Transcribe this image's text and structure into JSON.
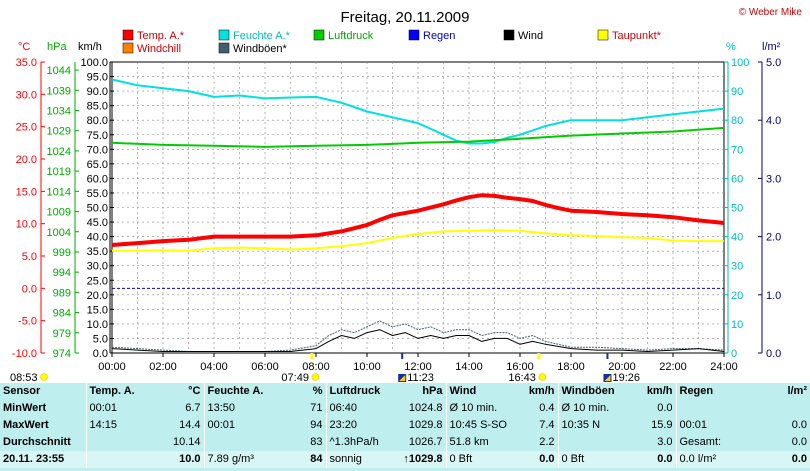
{
  "title": "Freitag, 20.11.2009",
  "credit": "© Weber Mike",
  "colors": {
    "temp": "#ff0000",
    "humidity": "#00e0e0",
    "pressure": "#00cc00",
    "rain": "#0000ff",
    "wind": "#000000",
    "dewpoint": "#ffff00",
    "windchill": "#ff8000",
    "gust": "#406070"
  },
  "chart_data": {
    "type": "line",
    "title": "Freitag, 20.11.2009",
    "axes": {
      "temp": {
        "unit": "°C",
        "min": -10,
        "max": 35,
        "ticks": [
          "35.0",
          "30.0",
          "25.0",
          "20.0",
          "15.0",
          "10.0",
          "5.0",
          "0.0",
          "-5.0",
          "-10.0"
        ]
      },
      "pressure": {
        "unit": "hPa",
        "min": 974,
        "max": 1046,
        "ticks": [
          "1044",
          "1039",
          "1034",
          "1029",
          "1024",
          "1019",
          "1014",
          "1009",
          "1004",
          "999",
          "994",
          "989",
          "984",
          "979",
          "974"
        ]
      },
      "wind": {
        "unit": "km/h",
        "min": 0,
        "max": 100,
        "ticks": [
          "100.0",
          "95.0",
          "90.0",
          "85.0",
          "80.0",
          "75.0",
          "70.0",
          "65.0",
          "60.0",
          "55.0",
          "50.0",
          "45.0",
          "40.0",
          "35.0",
          "30.0",
          "25.0",
          "20.0",
          "15.0",
          "10.0",
          "5.0",
          "0.0"
        ]
      },
      "humidity": {
        "unit": "%",
        "min": 0,
        "max": 100,
        "ticks": [
          "100",
          "90",
          "80",
          "70",
          "60",
          "50",
          "40",
          "30",
          "20",
          "10",
          "0"
        ]
      },
      "rain": {
        "unit": "l/m²",
        "min": 0,
        "max": 5,
        "ticks": [
          "5.0",
          "4.0",
          "3.0",
          "2.0",
          "1.0",
          "0.0"
        ]
      }
    },
    "x_ticks": [
      "00:00",
      "02:00",
      "04:00",
      "06:00",
      "08:00",
      "10:00",
      "12:00",
      "14:00",
      "16:00",
      "18:00",
      "20:00",
      "22:00",
      "24:00"
    ],
    "x_hours": [
      0,
      2,
      4,
      6,
      8,
      10,
      12,
      14,
      16,
      18,
      20,
      22,
      24
    ],
    "zero_line_temp": 0,
    "sun": {
      "rise_time": "07:49",
      "set_time": "16:43",
      "rise_hour": 7.82,
      "set_hour": 16.72
    },
    "moon": {
      "prev_set": "08:53",
      "rise_time": "11:23",
      "set_time": "19:26",
      "rise_hour": 11.38,
      "set_hour": 19.43
    },
    "legend": [
      {
        "key": "temp",
        "label": "Temp. A.*"
      },
      {
        "key": "humidity",
        "label": "Feuchte A.*"
      },
      {
        "key": "pressure",
        "label": "Luftdruck"
      },
      {
        "key": "rain",
        "label": "Regen"
      },
      {
        "key": "wind",
        "label": "Wind"
      },
      {
        "key": "dewpoint",
        "label": "Taupunkt*"
      },
      {
        "key": "windchill",
        "label": "Windchill"
      },
      {
        "key": "gust",
        "label": "Windböen*"
      }
    ],
    "series": [
      {
        "key": "humidity",
        "axis": "humidity",
        "width": 2,
        "x": [
          0,
          1,
          2,
          3,
          4,
          5,
          6,
          7,
          8,
          9,
          10,
          11,
          12,
          12.5,
          13,
          13.5,
          14,
          14.5,
          15,
          15.5,
          16,
          17,
          18,
          19,
          20,
          21,
          22,
          23,
          24
        ],
        "y": [
          94,
          92,
          91,
          90,
          88,
          88.5,
          87.5,
          87.8,
          88,
          86,
          83,
          81,
          79,
          77,
          75,
          73,
          72,
          72,
          72.5,
          74,
          75,
          78,
          80,
          80,
          80,
          81,
          82,
          83,
          84
        ]
      },
      {
        "key": "pressure",
        "axis": "pressure",
        "width": 2,
        "x": [
          0,
          2,
          4,
          6,
          8,
          10,
          12,
          14,
          16,
          18,
          20,
          22,
          24
        ],
        "y": [
          1026,
          1025.5,
          1025.3,
          1025.0,
          1025.3,
          1025.5,
          1026.0,
          1026.3,
          1027.0,
          1027.8,
          1028.3,
          1028.8,
          1029.7
        ]
      },
      {
        "key": "dewpoint",
        "axis": "temp",
        "width": 2,
        "x": [
          0,
          1,
          2,
          3,
          4,
          5,
          6,
          7,
          8,
          9,
          10,
          11,
          12,
          13,
          14,
          15,
          16,
          17,
          18,
          19,
          20,
          21,
          22,
          23,
          24
        ],
        "y": [
          5.8,
          5.8,
          5.9,
          5.8,
          6.2,
          6.3,
          6.2,
          6.0,
          6.2,
          6.5,
          7.0,
          7.8,
          8.4,
          8.8,
          8.9,
          9.0,
          8.9,
          8.5,
          8.2,
          8.1,
          7.9,
          7.8,
          7.4,
          7.3,
          7.3
        ]
      },
      {
        "key": "temp",
        "axis": "temp",
        "width": 4,
        "x": [
          0,
          1,
          2,
          3,
          4,
          5,
          6,
          7,
          8,
          9,
          10,
          10.5,
          11,
          12,
          13,
          13.5,
          14,
          14.5,
          15,
          15.5,
          16,
          16.5,
          17,
          17.5,
          18,
          19,
          20,
          21,
          22,
          23,
          24
        ],
        "y": [
          6.7,
          7.0,
          7.3,
          7.5,
          8.0,
          8.0,
          8.0,
          8.0,
          8.2,
          8.8,
          9.8,
          10.6,
          11.3,
          12.0,
          13.0,
          13.6,
          14.1,
          14.4,
          14.3,
          14.0,
          13.8,
          13.5,
          12.9,
          12.4,
          12.0,
          11.8,
          11.5,
          11.3,
          11.0,
          10.5,
          10.1
        ]
      },
      {
        "key": "gust",
        "axis": "wind",
        "width": 1,
        "x": [
          0,
          1,
          2,
          3,
          4,
          5,
          6,
          7,
          8,
          8.5,
          9,
          9.5,
          10,
          10.5,
          11,
          11.5,
          12,
          12.5,
          13,
          13.5,
          14,
          14.5,
          15,
          15.5,
          16,
          16.5,
          17,
          18,
          19,
          20,
          21,
          22,
          23,
          24
        ],
        "y": [
          2,
          1.5,
          1,
          0.5,
          0.5,
          0.5,
          0.5,
          1,
          2.5,
          6,
          8,
          7,
          9,
          11,
          9,
          10,
          8,
          9,
          7,
          8,
          8,
          6,
          7,
          7,
          5,
          6,
          4,
          2,
          2,
          1.5,
          1,
          1.5,
          1.5,
          1
        ]
      },
      {
        "key": "wind",
        "axis": "wind",
        "width": 1,
        "x": [
          0,
          1,
          2,
          3,
          4,
          5,
          6,
          7,
          8,
          8.5,
          9,
          9.5,
          10,
          10.5,
          11,
          11.5,
          12,
          12.5,
          13,
          13.5,
          14,
          14.5,
          15,
          15.5,
          16,
          16.5,
          17,
          18,
          19,
          20,
          21,
          22,
          23,
          24
        ],
        "y": [
          1.5,
          1,
          0.5,
          0.5,
          0.5,
          0.5,
          0.5,
          0.5,
          1.5,
          4,
          6,
          5,
          7,
          8,
          6,
          7,
          5,
          6,
          5,
          6,
          6,
          4,
          5,
          5,
          3,
          4,
          3,
          1.5,
          1,
          1,
          0.5,
          1,
          1.5,
          0.5
        ]
      }
    ]
  },
  "stats": {
    "rows": [
      [
        "Sensor",
        "Temp. A.",
        "°C",
        "Feuchte A.",
        "%",
        "Luftdruck",
        "hPa",
        "Wind",
        "km/h",
        "Windböen",
        "km/h",
        "Regen",
        "l/m²"
      ],
      [
        "MinWert",
        "00:01",
        "6.7",
        "13:50",
        "71",
        "06:40",
        "1024.8",
        "Ø 10 min.",
        "0.4",
        "Ø 10 min.",
        "0.0",
        "",
        ""
      ],
      [
        "MaxWert",
        "14:15",
        "14.4",
        "00:01",
        "94",
        "23:20",
        "1029.8",
        "10:45   S-SO",
        "7.4",
        "10:35   N",
        "15.9",
        "00:01",
        "0.0"
      ],
      [
        "Durchschnitt",
        "",
        "10.14",
        "",
        "83",
        "^1.3hPa/h",
        "1026.7",
        "51.8 km",
        "2.2",
        "",
        "3.0",
        "Gesamt:",
        "0.0"
      ],
      [
        "20.11.  23:55",
        "",
        "10.0",
        "7.89 g/m³",
        "84",
        "sonnig",
        "↑1029.8",
        "0 Bft",
        "0.0",
        "0 Bft",
        "0.0",
        "0.0 l/m²",
        "0.0"
      ]
    ]
  }
}
